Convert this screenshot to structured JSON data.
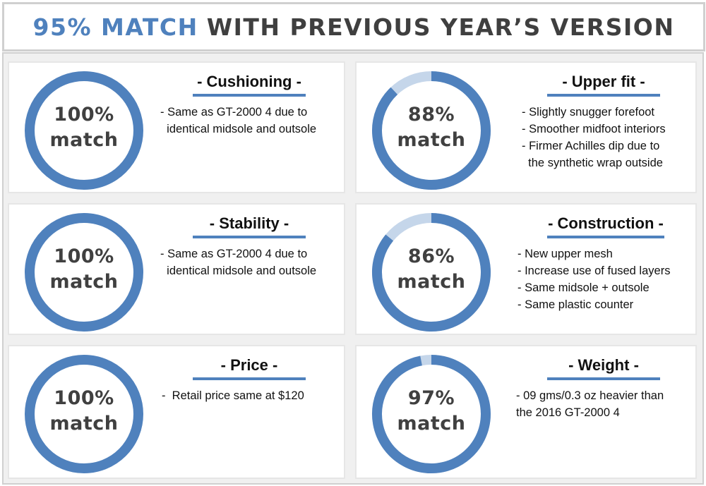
{
  "header": {
    "accent": "95% MATCH",
    "rest": "WITH PREVIOUS YEAR’S VERSION"
  },
  "colors": {
    "ring_fill": "#4f81bd",
    "ring_remainder": "#c5d6ea",
    "accent_text": "#4f81bd"
  },
  "cards": [
    {
      "percent": 100,
      "percent_label": "100%",
      "match_label": "match",
      "heading": "- Cushioning -",
      "bullets": [
        "- Same as GT-2000 4 due to",
        "  identical midsole and outsole"
      ]
    },
    {
      "percent": 88,
      "percent_label": "88%",
      "match_label": "match",
      "heading": "- Upper fit -",
      "bullets": [
        "- Slightly snugger forefoot",
        "- Smoother midfoot interiors",
        "- Firmer Achilles dip due to",
        "  the synthetic wrap outside"
      ]
    },
    {
      "percent": 100,
      "percent_label": "100%",
      "match_label": "match",
      "heading": "- Stability -",
      "bullets": [
        "- Same as GT-2000 4 due to",
        "  identical midsole and outsole"
      ]
    },
    {
      "percent": 86,
      "percent_label": "86%",
      "match_label": "match",
      "heading": "- Construction -",
      "bullets": [
        "- New upper mesh",
        "- Increase use of fused layers",
        "- Same midsole + outsole",
        "- Same plastic counter"
      ]
    },
    {
      "percent": 100,
      "percent_label": "100%",
      "match_label": "match",
      "heading": "- Price -",
      "bullets": [
        "-  Retail price same at $120"
      ]
    },
    {
      "percent": 97,
      "percent_label": "97%",
      "match_label": "match",
      "heading": "- Weight -",
      "bullets": [
        "- 09 gms/0.3 oz heavier than",
        "the 2016 GT-2000 4"
      ]
    }
  ]
}
